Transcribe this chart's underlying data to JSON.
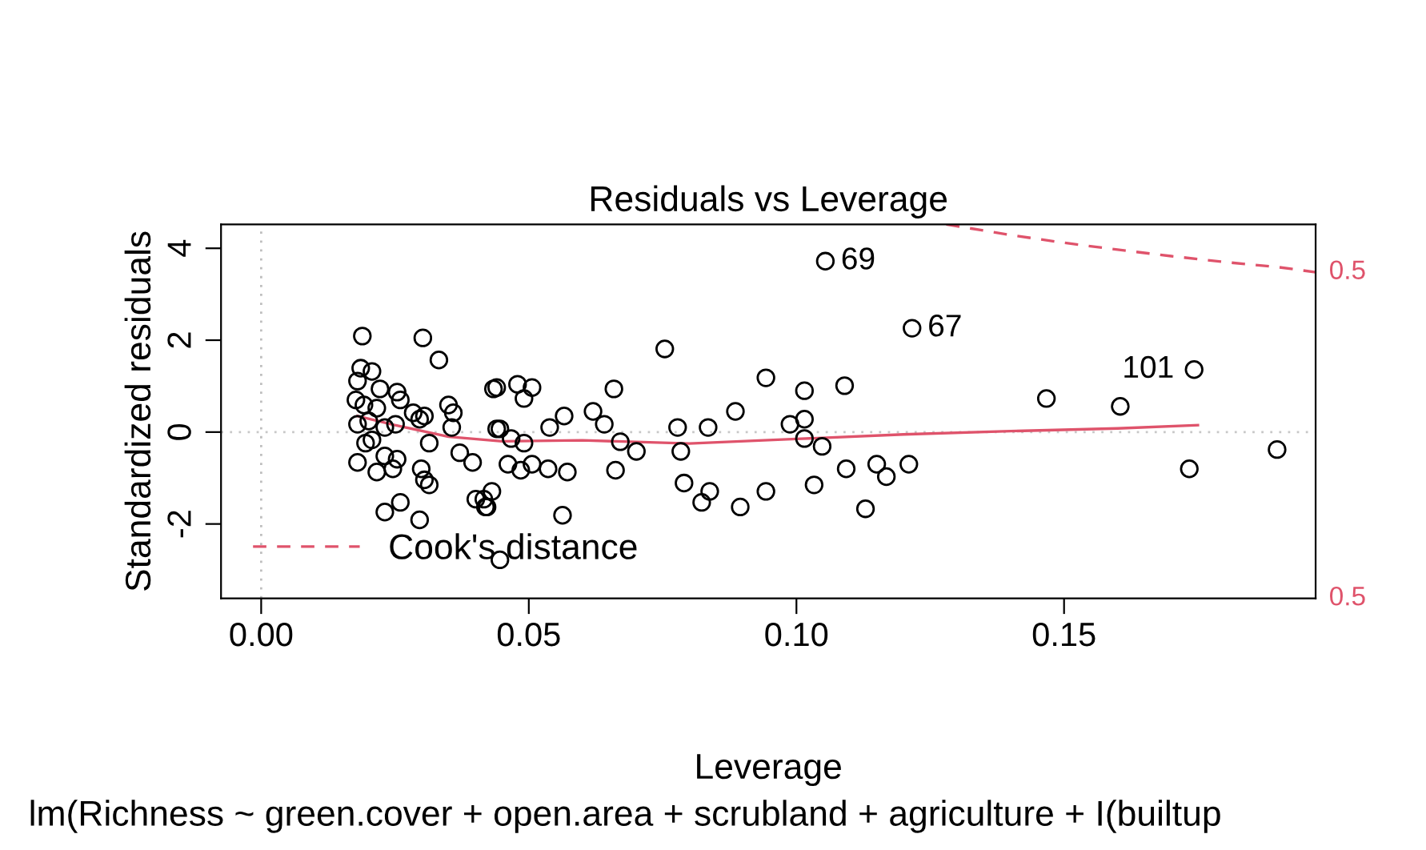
{
  "chart_data": {
    "type": "scatter",
    "title": "Residuals vs Leverage",
    "xlabel": "Leverage",
    "ylabel": "Standardized residuals",
    "xlim": [
      -0.0075,
      0.197
    ],
    "ylim": [
      -3.62,
      4.52
    ],
    "xticks": [
      {
        "value": 0,
        "label": "0.00"
      },
      {
        "value": 0.05,
        "label": "0.05"
      },
      {
        "value": 0.1,
        "label": "0.10"
      },
      {
        "value": 0.15,
        "label": "0.15"
      }
    ],
    "yticks": [
      {
        "value": -2,
        "label": "-2"
      },
      0,
      2,
      4
    ],
    "grid": false,
    "legend": "bottom left",
    "series": [
      {
        "color": "#000000",
        "marker": "circle",
        "x": [
          0.0189,
          0.0302,
          0.0332,
          0.0186,
          0.0207,
          0.018,
          0.0222,
          0.0254,
          0.0177,
          0.0192,
          0.0216,
          0.026,
          0.0284,
          0.0305,
          0.035,
          0.0359,
          0.0434,
          0.018,
          0.0201,
          0.0231,
          0.0251,
          0.0296,
          0.0356,
          0.044,
          0.0314,
          0.0195,
          0.0207,
          0.0371,
          0.0395,
          0.018,
          0.0231,
          0.0254,
          0.0216,
          0.0246,
          0.0299,
          0.0305,
          0.0314,
          0.0401,
          0.0419,
          0.0231,
          0.026,
          0.0296,
          0.1054,
          0.0754,
          0.044,
          0.0479,
          0.0506,
          0.0491,
          0.0659,
          0.0943,
          0.1015,
          0.109,
          0.0566,
          0.062,
          0.0539,
          0.0446,
          0.0641,
          0.0671,
          0.0701,
          0.0778,
          0.0835,
          0.0886,
          0.0988,
          0.1015,
          0.1015,
          0.1048,
          0.0467,
          0.0491,
          0.0784,
          0.0461,
          0.0485,
          0.0506,
          0.0536,
          0.0572,
          0.0662,
          0.1093,
          0.115,
          0.1168,
          0.079,
          0.0838,
          0.1033,
          0.0943,
          0.0431,
          0.0416,
          0.0422,
          0.0823,
          0.0895,
          0.1129,
          0.0563,
          0.0446,
          0.1216,
          0.1467,
          0.1605,
          0.1743,
          0.1734,
          0.1898,
          0.121
        ],
        "values": [
          2.09,
          2.05,
          1.57,
          1.39,
          1.32,
          1.11,
          0.94,
          0.87,
          0.7,
          0.59,
          0.52,
          0.7,
          0.42,
          0.35,
          0.59,
          0.42,
          0.94,
          0.17,
          0.24,
          0.1,
          0.17,
          0.28,
          0.1,
          0.07,
          -0.24,
          -0.24,
          -0.17,
          -0.45,
          -0.66,
          -0.66,
          -0.52,
          -0.59,
          -0.87,
          -0.8,
          -0.8,
          -1.04,
          -1.15,
          -1.46,
          -1.63,
          -1.74,
          -1.53,
          -1.91,
          3.72,
          1.81,
          0.97,
          1.04,
          0.97,
          0.73,
          0.94,
          1.18,
          0.9,
          1.01,
          0.35,
          0.45,
          0.1,
          0.07,
          0.17,
          -0.21,
          -0.42,
          0.1,
          0.1,
          0.45,
          0.17,
          0.28,
          -0.14,
          -0.31,
          -0.14,
          -0.24,
          -0.42,
          -0.7,
          -0.83,
          -0.7,
          -0.8,
          -0.87,
          -0.83,
          -0.8,
          -0.7,
          -0.97,
          -1.11,
          -1.29,
          -1.15,
          -1.29,
          -1.29,
          -1.46,
          -1.63,
          -1.53,
          -1.63,
          -1.67,
          -1.81,
          -2.78,
          2.26,
          0.73,
          0.56,
          1.36,
          -0.8,
          -0.38,
          -0.7
        ]
      },
      {
        "type": "line",
        "color": "#df536b",
        "line_style": "solid",
        "x": [
          0.018,
          0.025,
          0.035,
          0.045,
          0.06,
          0.08,
          0.1,
          0.12,
          0.14,
          0.16,
          0.175
        ],
        "values": [
          0.35,
          0.15,
          -0.1,
          -0.2,
          -0.18,
          -0.25,
          -0.15,
          -0.05,
          0.02,
          0.08,
          0.15
        ]
      },
      {
        "type": "line",
        "name": "Cook's distance",
        "color": "#df536b",
        "line_style": "dashed",
        "x": [
          0.128,
          0.14,
          0.15,
          0.16,
          0.17,
          0.18,
          0.19,
          0.197
        ],
        "values": [
          4.52,
          4.29,
          4.12,
          3.97,
          3.83,
          3.7,
          3.59,
          3.48
        ]
      }
    ],
    "ref_lines": [
      {
        "axis": "x",
        "value": 0,
        "color": "#bebebe",
        "line_style": "dotted"
      },
      {
        "axis": "y",
        "value": 0,
        "color": "#c8c8c8",
        "line_style": "dotted"
      }
    ],
    "annotations": [
      {
        "text": "69",
        "x": 0.1054,
        "y": 3.72
      },
      {
        "text": "67",
        "x": 0.1216,
        "y": 2.26
      },
      {
        "text": "101",
        "x": 0.1743,
        "y": 1.36
      },
      {
        "text": "0.5",
        "x": 0.197,
        "y": 3.48
      },
      "0.5",
      "lm(Richness ~ green.cover + open.area + scrubland + agriculture + I(builtup"
    ]
  }
}
